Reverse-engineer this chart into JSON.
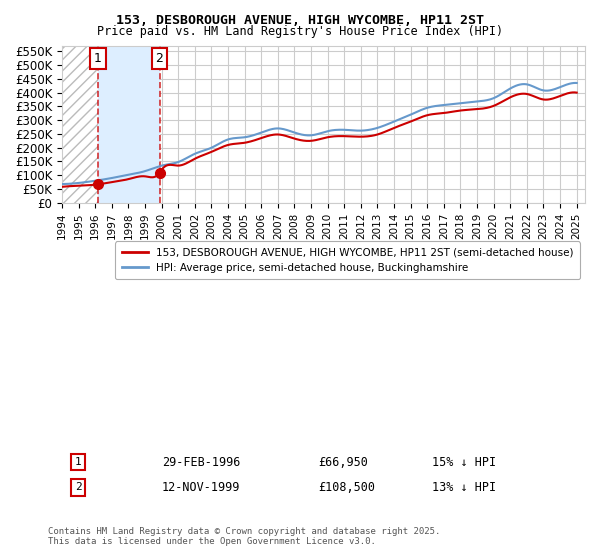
{
  "title1": "153, DESBOROUGH AVENUE, HIGH WYCOMBE, HP11 2ST",
  "title2": "Price paid vs. HM Land Registry's House Price Index (HPI)",
  "xlabel": "",
  "ylabel": "",
  "ylim": [
    0,
    570000
  ],
  "yticks": [
    0,
    50000,
    100000,
    150000,
    200000,
    250000,
    300000,
    350000,
    400000,
    450000,
    500000,
    550000
  ],
  "ytick_labels": [
    "£0",
    "£50K",
    "£100K",
    "£150K",
    "£200K",
    "£250K",
    "£300K",
    "£350K",
    "£400K",
    "£450K",
    "£500K",
    "£550K"
  ],
  "xlim_start": 1994.0,
  "xlim_end": 2025.5,
  "sale1_date": 1996.16,
  "sale1_price": 66950,
  "sale1_label": "1",
  "sale1_text": "29-FEB-1996",
  "sale1_amount": "£66,950",
  "sale1_hpi": "15% ↓ HPI",
  "sale2_date": 1999.87,
  "sale2_price": 108500,
  "sale2_label": "2",
  "sale2_text": "12-NOV-1999",
  "sale2_amount": "£108,500",
  "sale2_hpi": "13% ↓ HPI",
  "red_line_color": "#cc0000",
  "blue_line_color": "#6699cc",
  "hatch_color": "#aaaaaa",
  "shade_color": "#ddeeff",
  "legend_label_red": "153, DESBOROUGH AVENUE, HIGH WYCOMBE, HP11 2ST (semi-detached house)",
  "legend_label_blue": "HPI: Average price, semi-detached house, Buckinghamshire",
  "footer": "Contains HM Land Registry data © Crown copyright and database right 2025.\nThis data is licensed under the Open Government Licence v3.0.",
  "background_color": "#ffffff",
  "grid_color": "#cccccc"
}
